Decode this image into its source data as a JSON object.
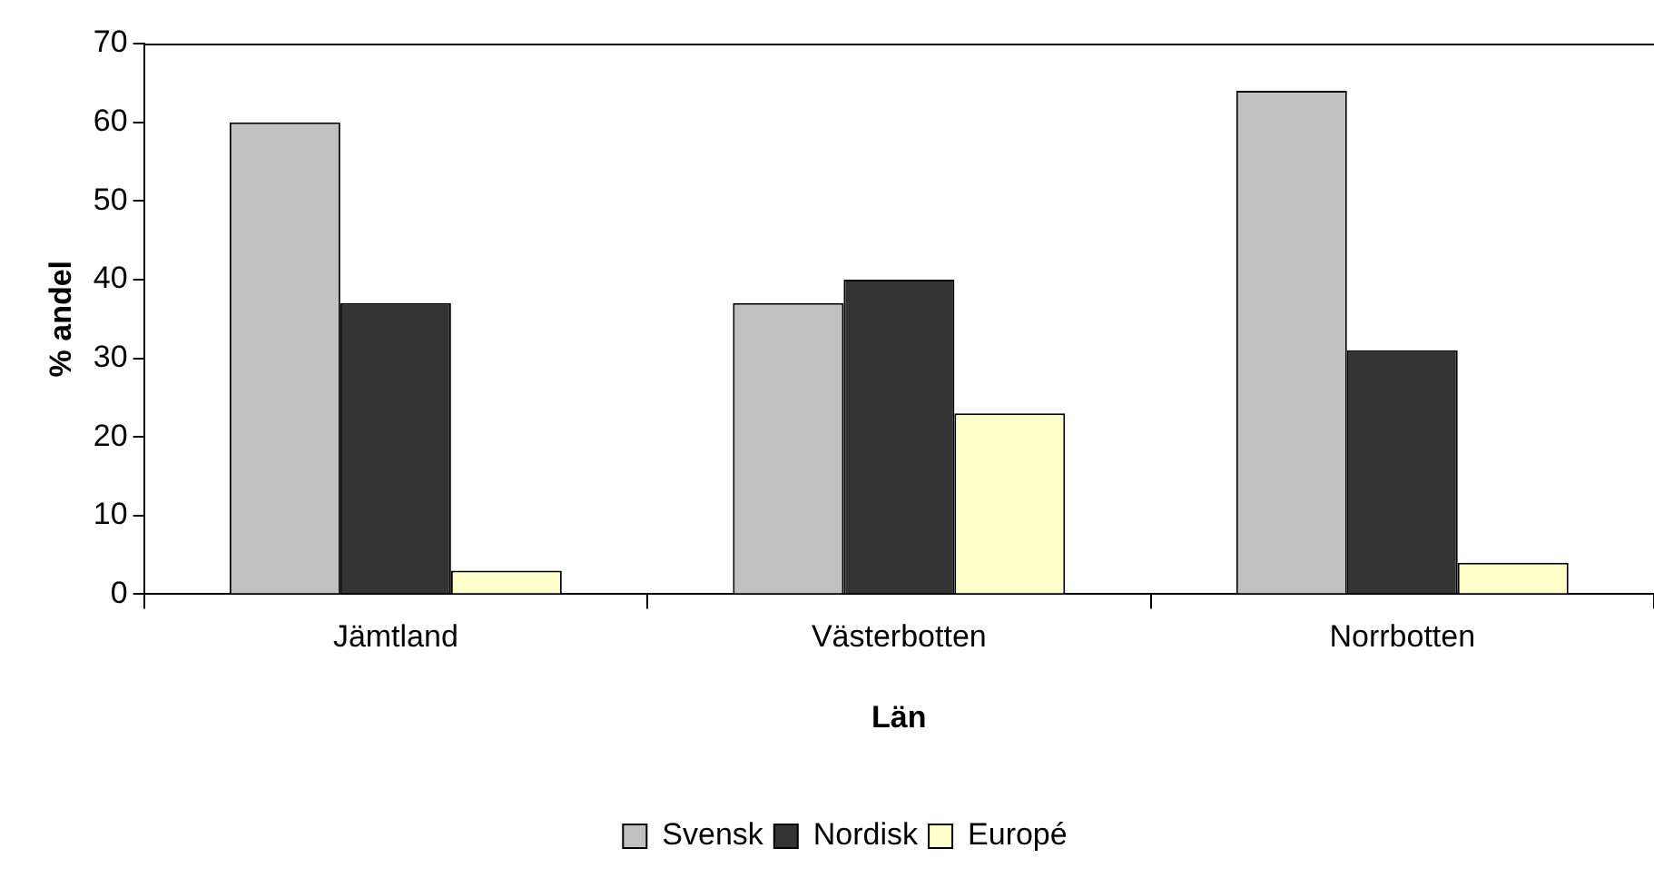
{
  "chart_data": {
    "type": "bar",
    "xlabel": "Län",
    "ylabel": "% andel",
    "categories": [
      "Jämtland",
      "Västerbotten",
      "Norrbotten"
    ],
    "series": [
      {
        "name": "Svensk",
        "color": "#c0c0c0",
        "values": [
          60,
          37,
          64
        ]
      },
      {
        "name": "Nordisk",
        "color": "#333333",
        "values": [
          37,
          40,
          31
        ]
      },
      {
        "name": "Europé",
        "color": "#ffffcc",
        "values": [
          3,
          23,
          4
        ]
      }
    ],
    "ylim": [
      0,
      70
    ],
    "yticks": [
      0,
      10,
      20,
      30,
      40,
      50,
      60,
      70
    ],
    "grid": false,
    "legend": "bottom"
  }
}
